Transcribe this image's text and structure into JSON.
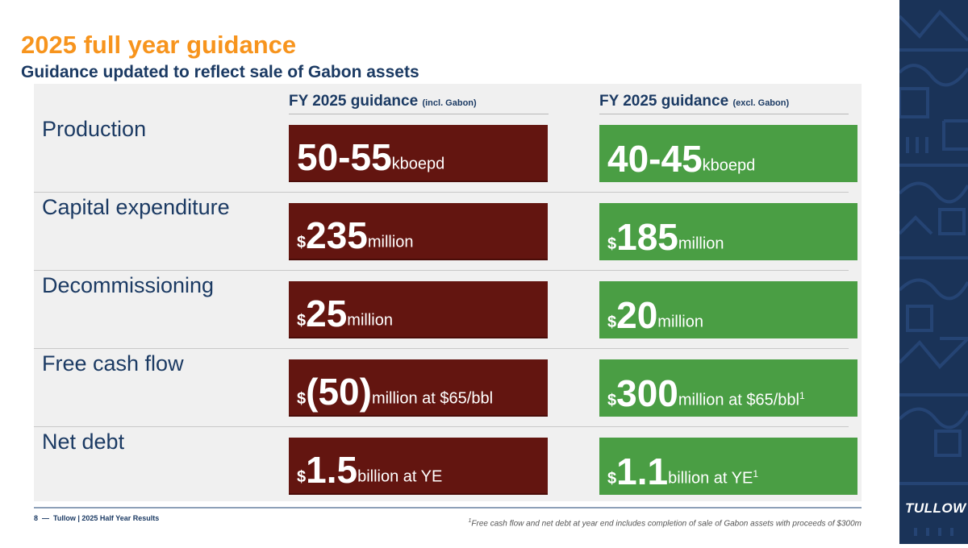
{
  "title": "2025 full year guidance",
  "subtitle": "Guidance updated to reflect sale of Gabon assets",
  "columns": [
    {
      "heading": "FY 2025 guidance",
      "note": "(incl. Gabon)"
    },
    {
      "heading": "FY 2025 guidance",
      "note": "(excl. Gabon)"
    }
  ],
  "rows": [
    {
      "label": "Production",
      "incl": {
        "currency": "",
        "value": "50-55",
        "unit": "kboepd",
        "sup": ""
      },
      "excl": {
        "currency": "",
        "value": "40-45",
        "unit": "kboepd",
        "sup": ""
      }
    },
    {
      "label": "Capital expenditure",
      "incl": {
        "currency": "$",
        "value": "235",
        "unit": "million",
        "sup": ""
      },
      "excl": {
        "currency": "$",
        "value": "185",
        "unit": "million",
        "sup": ""
      }
    },
    {
      "label": "Decommissioning",
      "incl": {
        "currency": "$",
        "value": "25",
        "unit": "million",
        "sup": ""
      },
      "excl": {
        "currency": "$",
        "value": "20",
        "unit": "million",
        "sup": ""
      }
    },
    {
      "label": "Free cash flow",
      "incl": {
        "currency": "$",
        "value": "(50)",
        "unit": "million at $65/bbl",
        "sup": ""
      },
      "excl": {
        "currency": "$",
        "value": "300",
        "unit": "million at $65/bbl",
        "sup": "1"
      }
    },
    {
      "label": "Net debt",
      "incl": {
        "currency": "$",
        "value": "1.5",
        "unit": "billion at YE",
        "sup": ""
      },
      "excl": {
        "currency": "$",
        "value": "1.1",
        "unit": " billion at YE",
        "sup": "1"
      }
    }
  ],
  "colors": {
    "incl": "#631510",
    "excl": "#4a9e44",
    "title": "#f7941d",
    "navy": "#1b3a63"
  },
  "footer": {
    "page": "8",
    "text": "Tullow | 2025 Half Year Results",
    "footnote_mark": "1",
    "footnote": "Free cash flow and net debt at year end includes completion of sale of Gabon assets with proceeds of $300m"
  },
  "logo": "TULLOW"
}
